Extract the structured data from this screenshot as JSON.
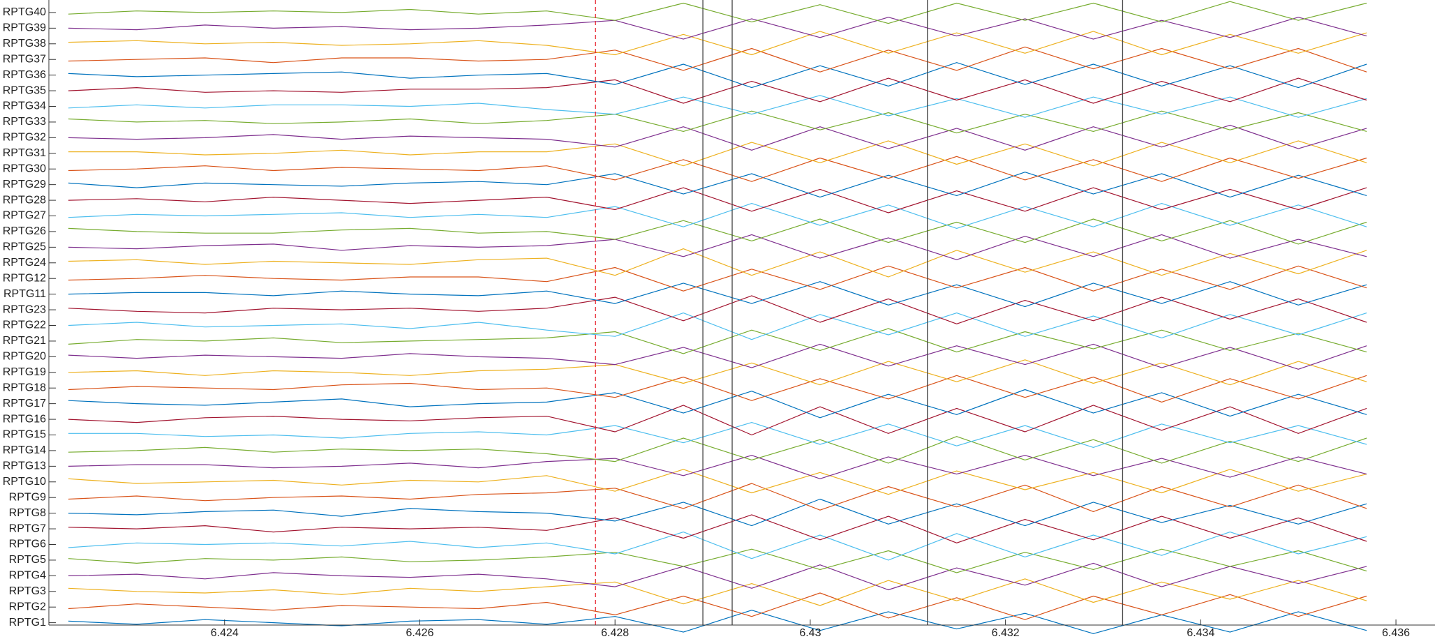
{
  "chart_data": {
    "type": "traces",
    "x": [
      6.4224,
      6.4231,
      6.4238,
      6.4245,
      6.4252,
      6.4259,
      6.4266,
      6.4273,
      6.428,
      6.4287,
      6.4294,
      6.4301,
      6.4308,
      6.4315,
      6.4322,
      6.4329,
      6.4336,
      6.4343,
      6.435,
      6.4357
    ],
    "xlim": [
      6.4222,
      6.4364
    ],
    "xticks": [
      6.424,
      6.426,
      6.428,
      6.43,
      6.432,
      6.434,
      6.436
    ],
    "ylim": [
      0.85,
      40.8
    ],
    "color_cycle": [
      "#0072bd",
      "#d95319",
      "#edb120",
      "#7e2f8e",
      "#77ac30",
      "#4dbeee",
      "#a2142f"
    ],
    "markers": [
      {
        "x": 6.4278,
        "color": "#e8202a",
        "dashed": true
      },
      {
        "x": 6.4289,
        "color": "#444444",
        "dashed": false
      },
      {
        "x": 6.4292,
        "color": "#444444",
        "dashed": false
      },
      {
        "x": 6.4312,
        "color": "#444444",
        "dashed": false
      },
      {
        "x": 6.4332,
        "color": "#444444",
        "dashed": false
      }
    ],
    "series": [
      {
        "name": "RPTG1",
        "values": [
          0.1,
          -0.1,
          0.2,
          0,
          -0.2,
          0.1,
          0.2,
          -0.1,
          0.4,
          -0.6,
          0.8,
          -0.5,
          0.7,
          -0.4,
          0.6,
          -0.7,
          0.5,
          -0.6,
          0.7,
          -0.5
        ]
      },
      {
        "name": "RPTG2",
        "values": [
          -0.1,
          0.2,
          0,
          -0.2,
          0.1,
          0,
          -0.1,
          0.3,
          -0.5,
          0.7,
          -0.6,
          0.9,
          -0.7,
          0.6,
          -0.8,
          0.7,
          -0.5,
          0.8,
          -0.6,
          0.7
        ]
      },
      {
        "name": "RPTG3",
        "values": [
          0.2,
          0,
          -0.1,
          0.1,
          -0.2,
          0.2,
          0,
          0.3,
          0.6,
          -0.8,
          0.5,
          -0.9,
          0.7,
          -0.6,
          0.8,
          -0.7,
          0.6,
          -0.5,
          0.7,
          -0.6
        ]
      },
      {
        "name": "RPTG4",
        "values": [
          0,
          0.1,
          -0.2,
          0.2,
          0,
          -0.1,
          0.1,
          -0.2,
          -0.7,
          0.6,
          -0.8,
          0.7,
          -0.9,
          0.5,
          -0.6,
          0.8,
          -0.7,
          0.6,
          -0.5,
          0.6
        ]
      },
      {
        "name": "RPTG5",
        "values": [
          0.1,
          -0.2,
          0.1,
          0,
          0.2,
          -0.1,
          0,
          0.2,
          0.5,
          -0.4,
          0.7,
          -0.6,
          0.6,
          -0.8,
          0.5,
          -0.6,
          0.7,
          -0.4,
          0.6,
          -0.7
        ]
      },
      {
        "name": "RPTG6",
        "values": [
          -0.2,
          0.1,
          0,
          0.1,
          -0.1,
          0.2,
          -0.2,
          0.1,
          -0.6,
          0.8,
          -0.9,
          0.6,
          -1,
          0.7,
          -0.8,
          0.6,
          -0.7,
          0.8,
          -0.6,
          0.5
        ]
      },
      {
        "name": "RPTG7",
        "values": [
          0.1,
          0,
          0.2,
          -0.2,
          0.1,
          0,
          0.1,
          -0.1,
          0.7,
          -0.6,
          0.9,
          -0.7,
          0.8,
          -0.9,
          0.6,
          -0.7,
          0.8,
          -0.6,
          0.7,
          -0.8
        ]
      },
      {
        "name": "RPTG8",
        "values": [
          0,
          -0.1,
          0.1,
          0.2,
          -0.2,
          0.3,
          0.1,
          0,
          -0.5,
          0.7,
          -0.8,
          0.9,
          -0.7,
          0.6,
          -0.8,
          0.7,
          -0.6,
          0.5,
          -0.7,
          0.6
        ]
      },
      {
        "name": "RPTG9",
        "values": [
          -0.1,
          0.1,
          -0.2,
          0,
          0.1,
          -0.1,
          0.2,
          0.3,
          0.6,
          -0.7,
          0.9,
          -0.8,
          0.7,
          -0.6,
          0.8,
          -0.9,
          0.7,
          -0.6,
          0.8,
          -0.7
        ]
      },
      {
        "name": "RPTG10",
        "values": [
          0.2,
          -0.1,
          0,
          0.1,
          -0.2,
          0.1,
          0,
          0.4,
          -0.6,
          0.8,
          -0.7,
          0.6,
          -0.8,
          0.7,
          -0.5,
          0.6,
          -0.7,
          0.8,
          -0.6,
          0.5
        ]
      },
      {
        "name": "RPTG13",
        "values": [
          0,
          0.1,
          0.1,
          -0.1,
          0,
          0.2,
          -0.1,
          0.3,
          0.5,
          -0.6,
          0.7,
          -0.8,
          0.6,
          -0.5,
          0.7,
          -0.6,
          0.5,
          -0.7,
          0.6,
          -0.5
        ]
      },
      {
        "name": "RPTG14",
        "values": [
          -0.1,
          0,
          0.2,
          -0.1,
          0.1,
          0,
          0.1,
          -0.2,
          -0.7,
          0.8,
          -0.6,
          0.7,
          -0.8,
          0.9,
          -0.6,
          0.7,
          -0.8,
          0.6,
          -0.7,
          0.8
        ]
      },
      {
        "name": "RPTG15",
        "values": [
          0.1,
          0.1,
          -0.1,
          0,
          -0.2,
          0.1,
          0.2,
          0,
          0.6,
          -0.5,
          0.8,
          -0.6,
          0.7,
          -0.7,
          0.6,
          -0.8,
          0.7,
          -0.5,
          0.6,
          -0.6
        ]
      },
      {
        "name": "RPTG16",
        "values": [
          0,
          -0.2,
          0.1,
          0.2,
          0,
          -0.1,
          0.1,
          0.2,
          -0.8,
          0.9,
          -1,
          0.8,
          -0.9,
          0.7,
          -0.8,
          0.9,
          -0.7,
          0.8,
          -0.9,
          0.7
        ]
      },
      {
        "name": "RPTG17",
        "values": [
          0.2,
          0,
          -0.1,
          0.1,
          0.3,
          -0.2,
          0,
          0.1,
          0.7,
          -0.6,
          0.8,
          -0.9,
          0.6,
          -0.7,
          0.9,
          -0.6,
          0.7,
          -0.8,
          0.6,
          -0.7
        ]
      },
      {
        "name": "RPTG18",
        "values": [
          -0.1,
          0.1,
          0,
          -0.1,
          0.2,
          0.3,
          -0.1,
          0,
          -0.6,
          0.7,
          -0.8,
          0.6,
          -0.7,
          0.8,
          -0.6,
          0.7,
          -0.9,
          0.6,
          -0.7,
          0.8
        ]
      },
      {
        "name": "RPTG19",
        "values": [
          0,
          0.1,
          -0.2,
          0.1,
          0,
          -0.2,
          0.1,
          0.2,
          0.5,
          -0.7,
          0.6,
          -0.8,
          0.7,
          -0.6,
          0.8,
          -0.7,
          0.6,
          -0.8,
          0.7,
          -0.6
        ]
      },
      {
        "name": "RPTG20",
        "values": [
          0.1,
          -0.1,
          0.1,
          0,
          -0.1,
          0.2,
          0,
          -0.1,
          -0.5,
          0.6,
          -0.7,
          0.8,
          -0.6,
          0.7,
          -0.5,
          0.8,
          -0.7,
          0.6,
          -0.8,
          0.7
        ]
      },
      {
        "name": "RPTG21",
        "values": [
          -0.2,
          0.1,
          0,
          0.2,
          -0.1,
          0,
          0.1,
          0.2,
          0.6,
          -0.8,
          0.7,
          -0.6,
          0.8,
          -0.7,
          0.6,
          -0.5,
          0.7,
          -0.6,
          0.5,
          -0.7
        ]
      },
      {
        "name": "RPTG22",
        "values": [
          0,
          0.2,
          -0.1,
          0,
          0.1,
          -0.2,
          0.2,
          -0.3,
          -0.7,
          0.8,
          -0.9,
          0.7,
          -0.6,
          0.8,
          -0.7,
          0.6,
          -0.8,
          0.7,
          -0.6,
          0.8
        ]
      },
      {
        "name": "RPTG23",
        "values": [
          0.1,
          -0.1,
          -0.2,
          0.1,
          0,
          0.1,
          -0.1,
          0.1,
          0.8,
          -0.7,
          0.9,
          -0.8,
          0.7,
          -0.9,
          0.6,
          -0.7,
          0.8,
          -0.6,
          0.7,
          -0.8
        ]
      },
      {
        "name": "RPTG11",
        "values": [
          0,
          0.1,
          0.1,
          -0.1,
          0.2,
          0,
          -0.1,
          0.2,
          -0.6,
          0.7,
          -0.6,
          0.8,
          -0.7,
          0.6,
          -0.8,
          0.7,
          -0.6,
          0.8,
          -0.7,
          0.6
        ]
      },
      {
        "name": "RPTG12",
        "values": [
          -0.1,
          0,
          0.2,
          0,
          -0.1,
          0.1,
          0.1,
          -0.2,
          0.7,
          -0.8,
          0.6,
          -0.7,
          0.8,
          -0.6,
          0.7,
          -0.8,
          0.6,
          -0.7,
          0.8,
          -0.6
        ]
      },
      {
        "name": "RPTG24",
        "values": [
          0.1,
          0.2,
          -0.1,
          0.1,
          0,
          -0.1,
          0.2,
          0.3,
          -0.8,
          0.9,
          -0.8,
          0.7,
          -0.9,
          0.8,
          -0.6,
          0.7,
          -0.8,
          0.6,
          -0.7,
          0.8
        ]
      },
      {
        "name": "RPTG25",
        "values": [
          0,
          -0.1,
          0.1,
          0.2,
          -0.2,
          0.1,
          0,
          0.1,
          0.5,
          -0.6,
          0.8,
          -0.7,
          0.6,
          -0.8,
          0.7,
          -0.6,
          0.8,
          -0.7,
          0.5,
          -0.6
        ]
      },
      {
        "name": "RPTG26",
        "values": [
          0.2,
          0,
          -0.1,
          -0.1,
          0.1,
          0.2,
          -0.1,
          0,
          -0.5,
          0.7,
          -0.6,
          0.8,
          -0.7,
          0.6,
          -0.7,
          0.8,
          -0.6,
          0.7,
          -0.8,
          0.6
        ]
      },
      {
        "name": "RPTG27",
        "values": [
          -0.1,
          0.1,
          0,
          0.1,
          0.2,
          -0.1,
          0.1,
          -0.1,
          0.6,
          -0.7,
          0.8,
          -0.6,
          0.7,
          -0.8,
          0.6,
          -0.7,
          0.8,
          -0.6,
          0.7,
          -0.7
        ]
      },
      {
        "name": "RPTG28",
        "values": [
          0,
          0.1,
          -0.1,
          0.2,
          0,
          -0.2,
          0,
          0.2,
          -0.6,
          0.8,
          -0.7,
          0.7,
          -0.8,
          0.6,
          -0.7,
          0.8,
          -0.6,
          0.7,
          -0.6,
          0.8
        ]
      },
      {
        "name": "RPTG29",
        "values": [
          0.1,
          -0.2,
          0.1,
          0,
          -0.1,
          0.1,
          0.2,
          0,
          0.7,
          -0.6,
          0.7,
          -0.8,
          0.6,
          -0.7,
          0.8,
          -0.6,
          0.7,
          -0.8,
          0.6,
          -0.7
        ]
      },
      {
        "name": "RPTG30",
        "values": [
          -0.1,
          0,
          0.2,
          -0.1,
          0.1,
          0,
          -0.1,
          0.2,
          -0.7,
          0.6,
          -0.8,
          0.7,
          -0.6,
          0.8,
          -0.7,
          0.6,
          -0.8,
          0.7,
          -0.6,
          0.7
        ]
      },
      {
        "name": "RPTG31",
        "values": [
          0.1,
          0.1,
          -0.1,
          0,
          0.2,
          -0.1,
          0.1,
          0.1,
          0.6,
          -0.8,
          0.7,
          -0.6,
          0.8,
          -0.7,
          0.6,
          -0.8,
          0.7,
          -0.6,
          0.8,
          -0.6
        ]
      },
      {
        "name": "RPTG32",
        "values": [
          0,
          -0.1,
          0,
          0.2,
          -0.1,
          0.1,
          0,
          -0.1,
          -0.6,
          0.7,
          -0.8,
          0.7,
          -0.7,
          0.6,
          -0.8,
          0.7,
          -0.6,
          0.8,
          -0.7,
          0.6
        ]
      },
      {
        "name": "RPTG33",
        "values": [
          0.2,
          0,
          0.1,
          -0.1,
          0,
          0.2,
          -0.1,
          0.1,
          0.5,
          -0.6,
          0.7,
          -0.5,
          0.6,
          -0.7,
          0.5,
          -0.6,
          0.7,
          -0.5,
          0.6,
          -0.6
        ]
      },
      {
        "name": "RPTG34",
        "values": [
          -0.1,
          0.1,
          -0.1,
          0.1,
          0.1,
          0,
          0.2,
          -0.2,
          -0.5,
          0.6,
          -0.5,
          0.7,
          -0.6,
          0.5,
          -0.7,
          0.6,
          -0.5,
          0.6,
          -0.7,
          0.5
        ]
      },
      {
        "name": "RPTG35",
        "values": [
          0,
          0.2,
          -0.1,
          0,
          -0.1,
          0.1,
          0.1,
          0.2,
          0.7,
          -0.8,
          0.6,
          -0.7,
          0.8,
          -0.6,
          0.7,
          -0.8,
          0.6,
          -0.7,
          0.8,
          -0.6
        ]
      },
      {
        "name": "RPTG36",
        "values": [
          0.1,
          -0.1,
          0,
          0.1,
          0.2,
          -0.2,
          0,
          0.1,
          -0.6,
          0.7,
          -0.8,
          0.6,
          -0.7,
          0.8,
          -0.6,
          0.7,
          -0.7,
          0.6,
          -0.8,
          0.7
        ]
      },
      {
        "name": "RPTG37",
        "values": [
          -0.1,
          0,
          0.1,
          -0.2,
          0.1,
          0.1,
          -0.1,
          0,
          0.6,
          -0.7,
          0.7,
          -0.8,
          0.6,
          -0.7,
          0.8,
          -0.6,
          0.7,
          -0.6,
          0.7,
          -0.8
        ]
      },
      {
        "name": "RPTG38",
        "values": [
          0.1,
          0.2,
          0,
          0.1,
          -0.1,
          0,
          0.2,
          -0.1,
          -0.7,
          0.6,
          -0.7,
          0.8,
          -0.6,
          0.7,
          -0.6,
          0.8,
          -0.7,
          0.6,
          -0.6,
          0.7
        ]
      },
      {
        "name": "RPTG39",
        "values": [
          0,
          -0.1,
          0.2,
          0,
          0.1,
          -0.1,
          0,
          0.2,
          0.5,
          -0.7,
          0.6,
          -0.6,
          0.7,
          -0.5,
          0.6,
          -0.7,
          0.5,
          -0.6,
          0.7,
          -0.5
        ]
      },
      {
        "name": "RPTG40",
        "values": [
          -0.1,
          0.1,
          0,
          0.1,
          0,
          0.2,
          -0.1,
          0.1,
          -0.5,
          0.6,
          -0.6,
          0.5,
          -0.7,
          0.6,
          -0.5,
          0.6,
          -0.6,
          0.7,
          -0.5,
          0.6
        ]
      }
    ]
  }
}
